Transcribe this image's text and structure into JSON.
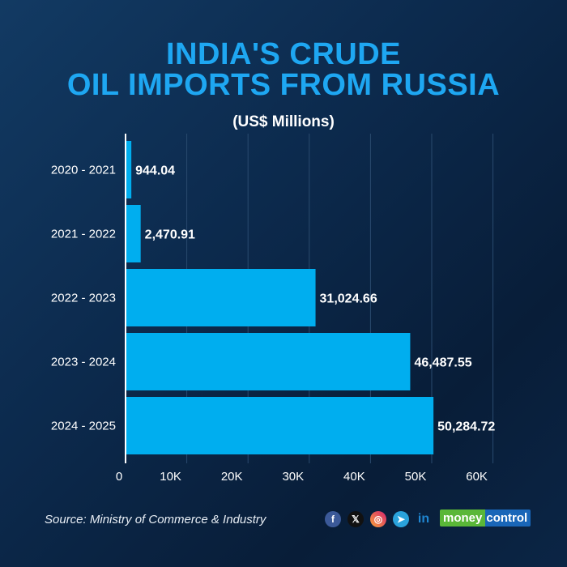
{
  "chart_data": {
    "type": "bar",
    "orientation": "horizontal",
    "title": "INDIA'S CRUDE OIL IMPORTS FROM RUSSIA",
    "title_lines": [
      "INDIA'S CRUDE",
      "OIL IMPORTS FROM RUSSIA"
    ],
    "subtitle": "(US$ Millions)",
    "categories": [
      "2020 - 2021",
      "2021 - 2022",
      "2022 - 2023",
      "2023 - 2024",
      "2024 - 2025"
    ],
    "values": [
      944.04,
      2470.91,
      31024.66,
      46487.55,
      50284.72
    ],
    "data_labels": [
      "944.04",
      "2,470.91",
      "31,024.66",
      "46,487.55",
      "50,284.72"
    ],
    "xticks": [
      "0",
      "10K",
      "20K",
      "30K",
      "40K",
      "50K",
      "60K"
    ],
    "xlim": [
      0,
      60000
    ],
    "grid": true,
    "bar_color": "#00aeef"
  },
  "footer": {
    "source": "Source: Ministry of Commerce & Industry",
    "brand_a": "money",
    "brand_b": "control",
    "social": [
      "facebook-icon",
      "x-icon",
      "instagram-icon",
      "telegram-icon",
      "linkedin-icon"
    ]
  }
}
